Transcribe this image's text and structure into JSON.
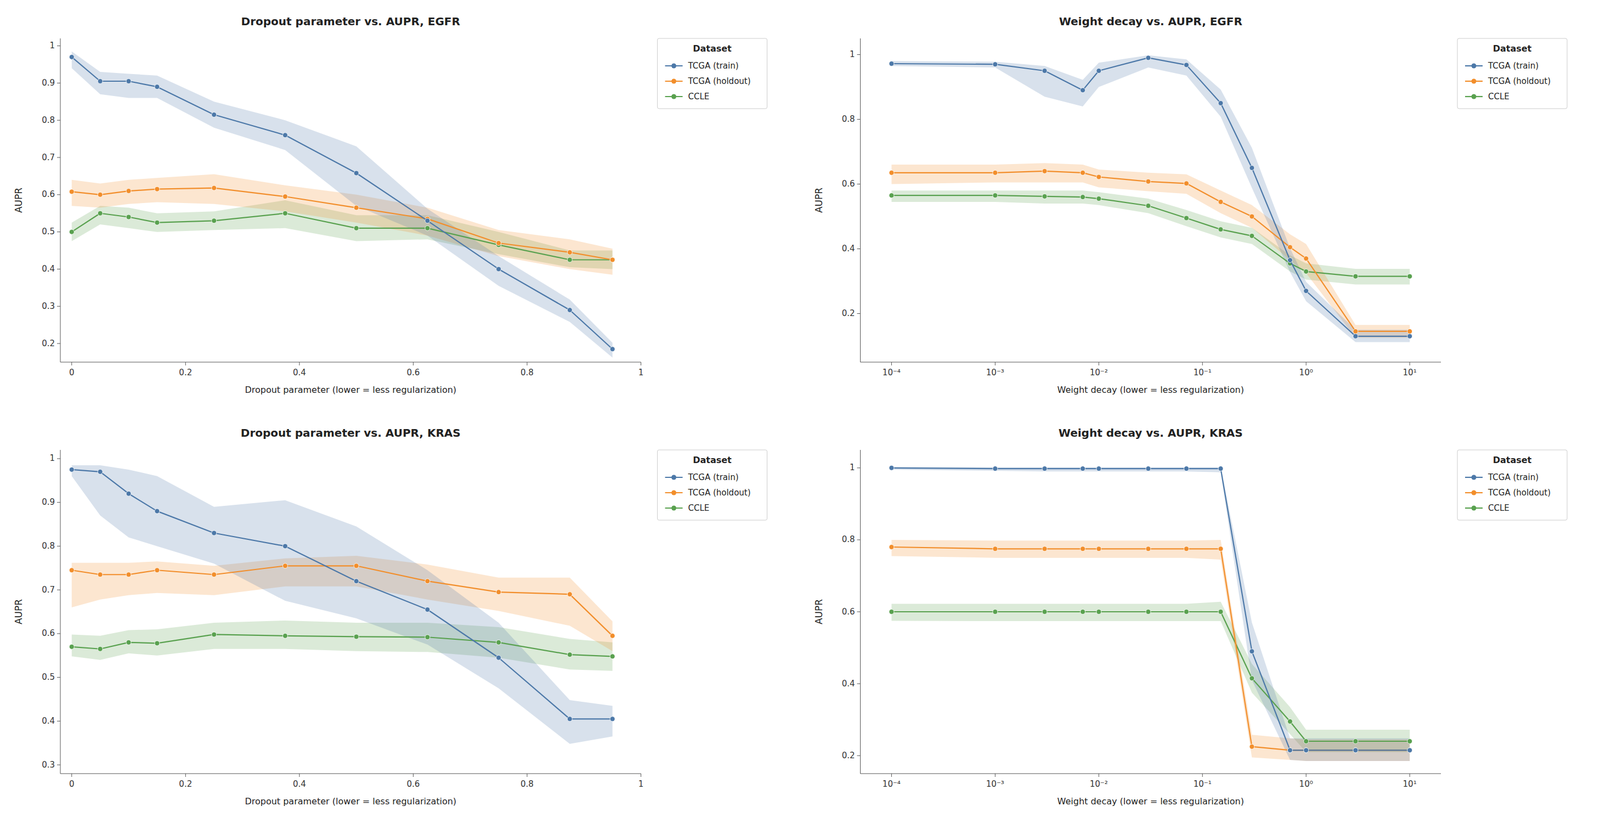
{
  "chart_data": [
    {
      "type": "line",
      "title": "Dropout parameter vs. AUPR, EGFR",
      "x_label": "Dropout parameter (lower = less regularization)",
      "y_label": "AUPR",
      "x": [
        0.0,
        0.05,
        0.1,
        0.15,
        0.25,
        0.375,
        0.5,
        0.625,
        0.75,
        0.875,
        0.95
      ],
      "xlim": [
        -0.02,
        1.0
      ],
      "xticks": [
        0,
        0.2,
        0.4,
        0.6,
        0.8,
        1
      ],
      "ylim": [
        0.15,
        1.02
      ],
      "yticks": [
        0.2,
        0.3,
        0.4,
        0.5,
        0.6,
        0.7,
        0.8,
        0.9,
        1
      ],
      "grid": false,
      "legend": "upper right",
      "legend_title": "Dataset",
      "marker": "circle",
      "series": [
        {
          "name": "TCGA (train)",
          "color": "#4c78a8",
          "values": [
            0.97,
            0.905,
            0.905,
            0.89,
            0.815,
            0.76,
            0.658,
            0.53,
            0.4,
            0.29,
            0.185
          ],
          "lo": [
            0.94,
            0.87,
            0.86,
            0.86,
            0.78,
            0.72,
            0.57,
            0.49,
            0.355,
            0.258,
            0.162
          ],
          "hi": [
            0.985,
            0.93,
            0.925,
            0.92,
            0.85,
            0.8,
            0.73,
            0.562,
            0.435,
            0.318,
            0.202
          ]
        },
        {
          "name": "TCGA (holdout)",
          "color": "#f28e2b",
          "values": [
            0.608,
            0.6,
            0.61,
            0.615,
            0.618,
            0.595,
            0.565,
            0.535,
            0.47,
            0.445,
            0.425
          ],
          "lo": [
            0.57,
            0.565,
            0.575,
            0.58,
            0.575,
            0.555,
            0.525,
            0.49,
            0.435,
            0.4,
            0.385
          ],
          "hi": [
            0.64,
            0.63,
            0.64,
            0.645,
            0.655,
            0.625,
            0.6,
            0.565,
            0.505,
            0.48,
            0.455
          ]
        },
        {
          "name": "CCLE",
          "color": "#59a14f",
          "values": [
            0.5,
            0.55,
            0.54,
            0.525,
            0.53,
            0.55,
            0.51,
            0.51,
            0.465,
            0.425,
            0.425
          ],
          "lo": [
            0.475,
            0.52,
            0.51,
            0.5,
            0.505,
            0.51,
            0.475,
            0.48,
            0.44,
            0.405,
            0.4
          ],
          "hi": [
            0.525,
            0.57,
            0.565,
            0.55,
            0.555,
            0.585,
            0.545,
            0.545,
            0.5,
            0.45,
            0.45
          ]
        }
      ]
    },
    {
      "type": "line",
      "title": "Weight decay vs. AUPR, EGFR",
      "x_label": "Weight decay (lower = less regularization)",
      "y_label": "AUPR",
      "x": [
        0.0001,
        0.001,
        0.003,
        0.007,
        0.01,
        0.03,
        0.07,
        0.15,
        0.3,
        0.7,
        1.0,
        3.0,
        10.0
      ],
      "log": "x",
      "xlim": [
        5e-05,
        20.0
      ],
      "xticks": [
        {
          "value": 0.0001,
          "label": "10⁻⁴"
        },
        {
          "value": 0.001,
          "label": "10⁻³"
        },
        {
          "value": 0.01,
          "label": "10⁻²"
        },
        {
          "value": 0.1,
          "label": "10⁻¹"
        },
        {
          "value": 1,
          "label": "10⁰"
        },
        {
          "value": 10,
          "label": "10¹"
        }
      ],
      "ylim": [
        0.05,
        1.05
      ],
      "yticks": [
        0.2,
        0.4,
        0.6,
        0.8,
        1
      ],
      "grid": false,
      "legend": "upper right",
      "legend_title": "Dataset",
      "marker": "circle",
      "series": [
        {
          "name": "TCGA (train)",
          "color": "#4c78a8",
          "values": [
            0.972,
            0.97,
            0.95,
            0.89,
            0.95,
            0.99,
            0.968,
            0.85,
            0.65,
            0.365,
            0.27,
            0.13,
            0.13
          ],
          "lo": [
            0.965,
            0.96,
            0.87,
            0.84,
            0.9,
            0.96,
            0.935,
            0.808,
            0.588,
            0.328,
            0.238,
            0.112,
            0.112
          ],
          "hi": [
            0.98,
            0.978,
            0.965,
            0.922,
            0.975,
            0.998,
            0.985,
            0.892,
            0.712,
            0.402,
            0.298,
            0.15,
            0.15
          ]
        },
        {
          "name": "TCGA (holdout)",
          "color": "#f28e2b",
          "values": [
            0.635,
            0.635,
            0.64,
            0.635,
            0.622,
            0.608,
            0.602,
            0.545,
            0.5,
            0.405,
            0.37,
            0.145,
            0.145
          ],
          "lo": [
            0.6,
            0.605,
            0.605,
            0.605,
            0.59,
            0.578,
            0.57,
            0.51,
            0.465,
            0.365,
            0.325,
            0.125,
            0.125
          ],
          "hi": [
            0.66,
            0.66,
            0.665,
            0.66,
            0.645,
            0.635,
            0.63,
            0.58,
            0.535,
            0.445,
            0.415,
            0.165,
            0.165
          ]
        },
        {
          "name": "CCLE",
          "color": "#59a14f",
          "values": [
            0.565,
            0.565,
            0.562,
            0.56,
            0.555,
            0.533,
            0.495,
            0.46,
            0.44,
            0.355,
            0.33,
            0.315,
            0.315
          ],
          "lo": [
            0.545,
            0.545,
            0.54,
            0.54,
            0.535,
            0.51,
            0.47,
            0.435,
            0.415,
            0.33,
            0.305,
            0.29,
            0.29
          ],
          "hi": [
            0.58,
            0.58,
            0.58,
            0.58,
            0.575,
            0.555,
            0.52,
            0.485,
            0.465,
            0.38,
            0.355,
            0.338,
            0.338
          ]
        }
      ]
    },
    {
      "type": "line",
      "title": "Dropout parameter vs. AUPR, KRAS",
      "x_label": "Dropout parameter (lower = less regularization)",
      "y_label": "AUPR",
      "x": [
        0.0,
        0.05,
        0.1,
        0.15,
        0.25,
        0.375,
        0.5,
        0.625,
        0.75,
        0.875,
        0.95
      ],
      "xlim": [
        -0.02,
        1.0
      ],
      "xticks": [
        0,
        0.2,
        0.4,
        0.6,
        0.8,
        1
      ],
      "ylim": [
        0.28,
        1.02
      ],
      "yticks": [
        0.3,
        0.4,
        0.5,
        0.6,
        0.7,
        0.8,
        0.9,
        1
      ],
      "grid": false,
      "legend": "upper right",
      "legend_title": "Dataset",
      "marker": "circle",
      "series": [
        {
          "name": "TCGA (train)",
          "color": "#4c78a8",
          "values": [
            0.975,
            0.97,
            0.92,
            0.88,
            0.83,
            0.8,
            0.72,
            0.655,
            0.545,
            0.405,
            0.405
          ],
          "lo": [
            0.96,
            0.87,
            0.82,
            0.8,
            0.76,
            0.675,
            0.635,
            0.575,
            0.475,
            0.348,
            0.365
          ],
          "hi": [
            0.985,
            0.985,
            0.975,
            0.96,
            0.89,
            0.905,
            0.845,
            0.745,
            0.625,
            0.448,
            0.435
          ]
        },
        {
          "name": "TCGA (holdout)",
          "color": "#f28e2b",
          "values": [
            0.745,
            0.735,
            0.735,
            0.745,
            0.735,
            0.755,
            0.755,
            0.72,
            0.695,
            0.69,
            0.595
          ],
          "lo": [
            0.66,
            0.678,
            0.688,
            0.693,
            0.688,
            0.708,
            0.708,
            0.678,
            0.652,
            0.618,
            0.56
          ],
          "hi": [
            0.762,
            0.762,
            0.762,
            0.765,
            0.755,
            0.772,
            0.778,
            0.758,
            0.728,
            0.728,
            0.628
          ]
        },
        {
          "name": "CCLE",
          "color": "#59a14f",
          "values": [
            0.57,
            0.565,
            0.58,
            0.578,
            0.598,
            0.595,
            0.593,
            0.592,
            0.58,
            0.552,
            0.548
          ],
          "lo": [
            0.548,
            0.54,
            0.555,
            0.55,
            0.565,
            0.565,
            0.56,
            0.558,
            0.545,
            0.518,
            0.515
          ],
          "hi": [
            0.598,
            0.595,
            0.608,
            0.61,
            0.625,
            0.63,
            0.625,
            0.625,
            0.615,
            0.588,
            0.58
          ]
        }
      ]
    },
    {
      "type": "line",
      "title": "Weight decay vs. AUPR, KRAS",
      "x_label": "Weight decay (lower = less regularization)",
      "y_label": "AUPR",
      "x": [
        0.0001,
        0.001,
        0.003,
        0.007,
        0.01,
        0.03,
        0.07,
        0.15,
        0.3,
        0.7,
        1.0,
        3.0,
        10.0
      ],
      "log": "x",
      "xlim": [
        5e-05,
        20.0
      ],
      "xticks": [
        {
          "value": 0.0001,
          "label": "10⁻⁴"
        },
        {
          "value": 0.001,
          "label": "10⁻³"
        },
        {
          "value": 0.01,
          "label": "10⁻²"
        },
        {
          "value": 0.1,
          "label": "10⁻¹"
        },
        {
          "value": 1,
          "label": "10⁰"
        },
        {
          "value": 10,
          "label": "10¹"
        }
      ],
      "ylim": [
        0.15,
        1.05
      ],
      "yticks": [
        0.2,
        0.4,
        0.6,
        0.8,
        1
      ],
      "grid": false,
      "legend": "upper right",
      "legend_title": "Dataset",
      "marker": "circle",
      "series": [
        {
          "name": "TCGA (train)",
          "color": "#4c78a8",
          "values": [
            1.0,
            0.998,
            0.998,
            0.998,
            0.998,
            0.998,
            0.998,
            0.998,
            0.49,
            0.215,
            0.215,
            0.215,
            0.215
          ],
          "lo": [
            0.995,
            0.992,
            0.99,
            0.99,
            0.99,
            0.99,
            0.99,
            0.988,
            0.41,
            0.188,
            0.185,
            0.185,
            0.185
          ],
          "hi": [
            1.002,
            1.002,
            1.002,
            1.002,
            1.002,
            1.002,
            1.002,
            1.002,
            0.57,
            0.248,
            0.248,
            0.248,
            0.248
          ]
        },
        {
          "name": "TCGA (holdout)",
          "color": "#f28e2b",
          "values": [
            0.78,
            0.775,
            0.775,
            0.775,
            0.775,
            0.775,
            0.775,
            0.775,
            0.225,
            0.215,
            0.215,
            0.215,
            0.215
          ],
          "lo": [
            0.755,
            0.75,
            0.75,
            0.75,
            0.75,
            0.75,
            0.75,
            0.745,
            0.195,
            0.188,
            0.185,
            0.185,
            0.185
          ],
          "hi": [
            0.8,
            0.798,
            0.798,
            0.798,
            0.798,
            0.798,
            0.798,
            0.8,
            0.258,
            0.248,
            0.245,
            0.245,
            0.245
          ]
        },
        {
          "name": "CCLE",
          "color": "#59a14f",
          "values": [
            0.6,
            0.6,
            0.6,
            0.6,
            0.6,
            0.6,
            0.6,
            0.6,
            0.415,
            0.295,
            0.24,
            0.24,
            0.24
          ],
          "lo": [
            0.575,
            0.574,
            0.574,
            0.574,
            0.574,
            0.574,
            0.574,
            0.574,
            0.375,
            0.26,
            0.21,
            0.21,
            0.21
          ],
          "hi": [
            0.622,
            0.622,
            0.622,
            0.622,
            0.622,
            0.622,
            0.622,
            0.628,
            0.455,
            0.335,
            0.272,
            0.272,
            0.272
          ]
        }
      ]
    }
  ]
}
